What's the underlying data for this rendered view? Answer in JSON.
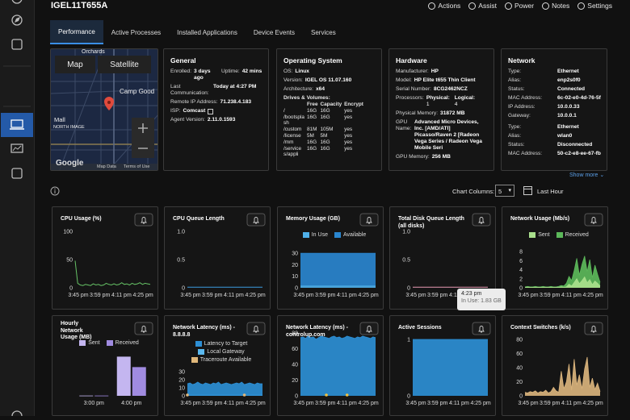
{
  "header": {
    "device_name": "IGEL11T655A",
    "actions": [
      "Actions",
      "Assist",
      "Power",
      "Notes",
      "Settings"
    ]
  },
  "tabs": {
    "items": [
      "Performance",
      "Active Processes",
      "Installed Applications",
      "Device Events",
      "Services"
    ],
    "active": 0
  },
  "map": {
    "buttons": [
      "Map",
      "Satellite"
    ],
    "labels": [
      "Orchards",
      "Camp Good",
      "Mall",
      "NORTH IMAGE"
    ],
    "logo": "Google",
    "footer": [
      "Map Data",
      "Terms of Use"
    ]
  },
  "info_cards": [
    {
      "title": "General",
      "fields": [
        {
          "label": "Enrolled:",
          "value": "3 days ago"
        },
        {
          "label": "Uptime:",
          "value": "42 mins"
        },
        {
          "label": "Last Communication:",
          "value": "Today at 4:27 PM"
        },
        {
          "label": "Remote IP Address:",
          "value": "71.238.4.183"
        },
        {
          "label": "ISP:",
          "value": "Comcast"
        },
        {
          "label": "Agent Version:",
          "value": "2.11.0.1593"
        }
      ]
    },
    {
      "title": "Operating System",
      "fields": [
        {
          "label": "OS:",
          "value": "Linux"
        },
        {
          "label": "Version:",
          "value": "IGEL OS 11.07.160"
        },
        {
          "label": "Architecture:",
          "value": "x64"
        }
      ],
      "drives": {
        "title": "Drives & Volumes:",
        "columns": [
          "Free",
          "Capacity",
          "Encrypt"
        ],
        "rows": [
          [
            "/",
            "16G",
            "16G",
            "yes"
          ],
          [
            "/bootsplash",
            "16G",
            "16G",
            "yes"
          ],
          [
            "/custom",
            "81M",
            "105M",
            "yes"
          ],
          [
            "/license",
            "5M",
            "5M",
            "yes"
          ],
          [
            "/mm",
            "16G",
            "16G",
            "yes"
          ],
          [
            "/services/appli",
            "16G",
            "16G",
            "yes"
          ]
        ]
      }
    },
    {
      "title": "Hardware",
      "fields": [
        {
          "label": "Manufacturer:",
          "value": "HP"
        },
        {
          "label": "Model:",
          "value": "HP Elite t655 Thin Client"
        },
        {
          "label": "Serial Number:",
          "value": "8CG2462NCZ"
        },
        {
          "label": "Processors:",
          "value": [
            {
              "label": "Physical:",
              "value": "1"
            },
            {
              "label": "Logical:",
              "value": "4"
            }
          ]
        },
        {
          "label": "Physical Memory:",
          "value": "31872 MB"
        },
        {
          "label": "GPU Name:",
          "value": "Advanced Micro Devices, Inc. [AMD/ATI] Picasso/Raven 2 [Radeon Vega Series / Radeon Vega Mobile Seri"
        },
        {
          "label": "GPU Memory:",
          "value": "256 MB"
        }
      ]
    },
    {
      "title": "Network",
      "fields": [
        {
          "label": "Type:",
          "value": "Ethernet"
        },
        {
          "label": "Alias:",
          "value": "enp2s0f0"
        },
        {
          "label": "Status:",
          "value": "Connected"
        },
        {
          "label": "MAC Address:",
          "value": "6c-02-e0-4d-76-5f"
        },
        {
          "label": "IP Address:",
          "value": "10.0.0.33"
        },
        {
          "label": "Gateway:",
          "value": "10.0.0.1"
        },
        {
          "label": "Type:",
          "value": "Ethernet"
        },
        {
          "label": "Alias:",
          "value": "wlan0"
        },
        {
          "label": "Status:",
          "value": "Disconnected"
        },
        {
          "label": "MAC Address:",
          "value": "50-c2-e8-ee-67-fb"
        }
      ]
    }
  ],
  "show_more": "Show more",
  "chart_controls": {
    "label": "Chart Columns:",
    "value": "5",
    "range": "Last Hour"
  },
  "charts": [
    {
      "title": "CPU Usage (%)",
      "type": "line",
      "ylim": [
        0,
        100
      ],
      "yticks": [
        0,
        50,
        100
      ],
      "x_labels": [
        "3:45 pm",
        "3:59 pm",
        "4:11 pm",
        "4:25 pm"
      ],
      "series": [
        {
          "color": "#66c266",
          "values": [
            48,
            8,
            5,
            4,
            6,
            5,
            4,
            7,
            5,
            6,
            4,
            5,
            8,
            6,
            5,
            7,
            5,
            6,
            9,
            6,
            7,
            5,
            8,
            6,
            7,
            9,
            6,
            8,
            7,
            6
          ]
        }
      ]
    },
    {
      "title": "CPU Queue Length",
      "type": "line",
      "ylim": [
        0,
        1
      ],
      "yticks": [
        0,
        0.5,
        {
          "value": 1,
          "label": "1.0"
        }
      ],
      "x_labels": [
        "3:45 pm",
        "3:59 pm",
        "4:11 pm",
        "4:25 pm"
      ],
      "series": [
        {
          "color": "#3d9be0",
          "values": [
            0.01,
            0.01,
            0.01,
            0.01,
            0.01,
            0.01,
            0.01,
            0.01,
            0.01,
            0.01,
            0.01,
            0.01,
            0.01,
            0.01,
            0.01,
            0.01,
            0.01,
            0.01,
            0.01,
            0.01
          ]
        }
      ]
    },
    {
      "title": "Memory Usage (GB)",
      "type": "stacked_area",
      "ylim": [
        0,
        30
      ],
      "yticks": [
        0,
        10,
        20,
        30
      ],
      "x_labels": [
        "3:45 pm",
        "3:59 pm",
        "4:11 pm",
        "4:25 pm"
      ],
      "series": [
        {
          "name": "In Use",
          "color": "#4fb0ea",
          "values": [
            1.83,
            1.83,
            1.83,
            1.83,
            1.83,
            1.83,
            1.83,
            1.83,
            1.83,
            1.83,
            1.83,
            1.83,
            1.83,
            1.83,
            1.83,
            1.83,
            1.83,
            1.83,
            1.83,
            1.83
          ]
        },
        {
          "name": "Available",
          "color": "#2a86cf",
          "values": [
            28,
            28,
            28,
            28,
            28,
            28,
            28,
            28,
            28,
            28,
            28,
            28,
            28,
            28,
            28,
            28,
            28,
            28,
            28,
            28
          ]
        }
      ]
    },
    {
      "title": "Total Disk Queue Length (all disks)",
      "type": "line",
      "ylim": [
        0,
        1
      ],
      "yticks": [
        0,
        0.5,
        {
          "value": 1,
          "label": "1.0"
        }
      ],
      "x_labels": [
        "3:45 pm",
        "3:59 pm",
        "4:11 pm",
        "4:25 pm"
      ],
      "series": [
        {
          "color": "#e89ab4",
          "values": [
            0.01,
            0.01,
            0.01,
            0.01,
            0.01,
            0.01,
            0.01,
            0.01,
            0.01,
            0.01,
            0.01,
            0.01,
            0.01,
            0.01,
            0.01,
            0.01,
            0.01,
            0.01,
            0.01,
            0.01
          ]
        }
      ]
    },
    {
      "title": "Network Usage (Mb/s)",
      "type": "area",
      "ylim": [
        0,
        8
      ],
      "yticks": [
        0,
        2,
        4,
        6,
        8
      ],
      "x_labels": [
        "3:45 pm",
        "3:59 pm",
        "4:11 pm",
        "4:25 pm"
      ],
      "series": [
        {
          "name": "Sent",
          "color": "#a9df8c",
          "values": [
            0.1,
            0.1,
            0.1,
            0.1,
            0.1,
            0.1,
            0.1,
            0.1,
            0.1,
            0.1,
            0.1,
            0.1,
            0.1,
            0.1,
            0.2,
            0.1,
            0.2,
            0.8,
            0.4,
            1.2,
            2.0,
            0.9,
            1.6,
            2.4,
            1.1,
            1.8,
            0.7,
            1.5,
            1.0,
            0.4
          ]
        },
        {
          "name": "Received",
          "color": "#5cb85a",
          "values": [
            0.2,
            0.3,
            0.2,
            0.2,
            0.3,
            0.2,
            0.2,
            0.3,
            0.2,
            0.2,
            0.3,
            0.2,
            0.2,
            0.3,
            0.5,
            0.4,
            1.0,
            2.5,
            1.6,
            3.8,
            6.5,
            2.8,
            5.2,
            7.0,
            3.6,
            6.2,
            2.2,
            5.0,
            3.0,
            1.2
          ]
        }
      ]
    },
    {
      "title": "Hourly Network Usage (MB)",
      "type": "bar",
      "ylim": [
        0,
        50
      ],
      "categories": [
        "3:00 pm",
        "4:00 pm"
      ],
      "series": [
        {
          "name": "Sent",
          "color": "#c4b6f0",
          "values": [
            0.3,
            45
          ]
        },
        {
          "name": "Received",
          "color": "#a08be0",
          "values": [
            0.3,
            33
          ]
        }
      ]
    },
    {
      "title": "Network Latency (ms) - 8.8.8.8",
      "type": "area",
      "ylim": [
        0,
        30
      ],
      "yticks": [
        0,
        10,
        20,
        30
      ],
      "x_labels": [
        "3:45 pm",
        "3:59 pm",
        "4:11 pm",
        "4:25 pm"
      ],
      "series": [
        {
          "name": "Latency to Target",
          "color": "#2d8fd5",
          "values": [
            15,
            16,
            14,
            15,
            17,
            15,
            14,
            16,
            15,
            14,
            16,
            15,
            17,
            14,
            15,
            16,
            15,
            14,
            15,
            16,
            15,
            17,
            14,
            15,
            16,
            15,
            14,
            16,
            15,
            15
          ]
        },
        {
          "name": "Local Gateway",
          "color": "#5bb8ee",
          "values": [
            1,
            1,
            1,
            1,
            1,
            1,
            1,
            1,
            1,
            1,
            1,
            1,
            1,
            1,
            1,
            1,
            1,
            1,
            1,
            1,
            1,
            1,
            1,
            1,
            1,
            1,
            1,
            1,
            1,
            1
          ]
        },
        {
          "name": "Traceroute Available",
          "color": "#e0b77a",
          "style": "dots",
          "values": [
            0,
            null,
            null,
            null,
            null,
            null,
            null,
            null,
            null,
            null,
            null,
            null,
            null,
            null,
            null,
            null,
            null,
            null,
            null,
            null,
            null,
            null,
            0,
            null,
            null,
            null,
            null,
            null,
            null,
            null
          ]
        }
      ]
    },
    {
      "title": "Network Latency (ms) - controlup.com",
      "type": "area",
      "ylim": [
        0,
        80
      ],
      "yticks": [
        0,
        20,
        40,
        60,
        80
      ],
      "x_labels": [
        "3:45 pm",
        "3:59 pm",
        "4:11 pm",
        "4:25 pm"
      ],
      "series": [
        {
          "color": "#2d8fd5",
          "values": [
            74,
            75,
            73,
            76,
            74,
            75,
            72,
            74,
            76,
            75,
            74,
            73,
            75,
            76,
            74,
            75,
            73,
            74,
            76,
            75,
            74,
            73,
            75,
            74,
            76,
            75,
            74,
            73,
            75,
            74
          ]
        },
        {
          "color": "#f0c040",
          "style": "dots",
          "values": [
            null,
            null,
            null,
            null,
            null,
            null,
            null,
            null,
            null,
            null,
            0,
            null,
            null,
            null,
            null,
            null,
            null,
            null,
            0,
            null,
            null,
            null,
            null,
            null,
            null,
            null,
            null,
            null,
            null,
            null
          ]
        }
      ]
    },
    {
      "title": "Active Sessions",
      "type": "area",
      "ylim": [
        0,
        1
      ],
      "yticks": [
        0,
        1
      ],
      "x_labels": [
        "3:45 pm",
        "3:59 pm",
        "4:11 pm",
        "4:25 pm"
      ],
      "series": [
        {
          "color": "#2d8fd5",
          "values": [
            1,
            1,
            1,
            1,
            1,
            1,
            1,
            1,
            1,
            1,
            1,
            1,
            1,
            1,
            1,
            1,
            1,
            1,
            1,
            1
          ]
        }
      ]
    },
    {
      "title": "Context Switches (k/s)",
      "type": "area",
      "ylim": [
        0,
        80
      ],
      "yticks": [
        0,
        20,
        40,
        60,
        80
      ],
      "x_labels": [
        "3:45 pm",
        "3:59 pm",
        "4:11 pm",
        "4:25 pm"
      ],
      "series": [
        {
          "color": "#d9b37c",
          "values": [
            5,
            4,
            6,
            5,
            7,
            4,
            6,
            5,
            8,
            4,
            6,
            12,
            7,
            5,
            35,
            10,
            20,
            45,
            8,
            52,
            15,
            30,
            10,
            38,
            55,
            12,
            25,
            9,
            18,
            6
          ]
        }
      ]
    }
  ],
  "tooltip": {
    "time": "4:23 pm",
    "text": "In Use: 1.83 GB"
  }
}
